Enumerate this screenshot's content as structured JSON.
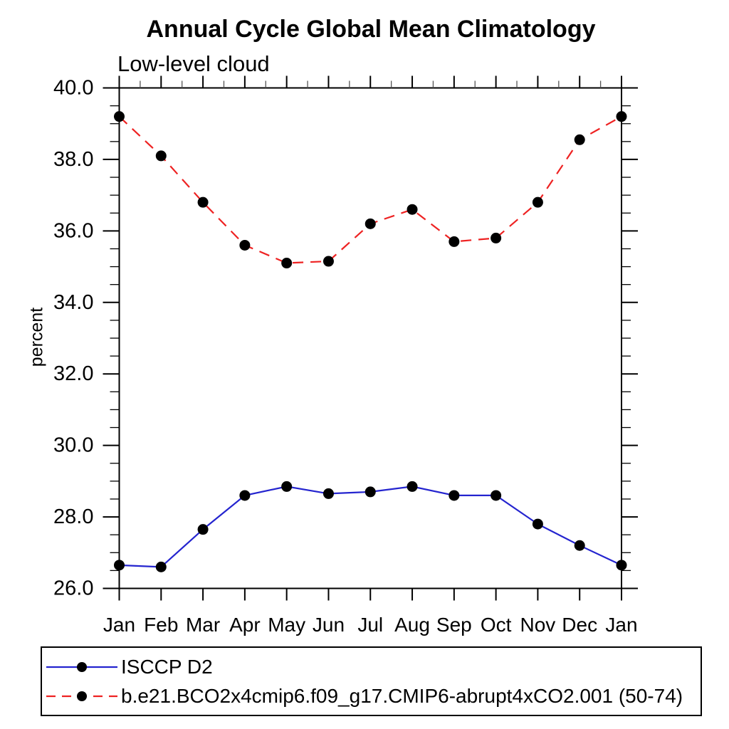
{
  "chart": {
    "title": "Annual Cycle Global Mean Climatology",
    "subtitle": "Low-level cloud",
    "ylabel": "percent"
  },
  "chart_data": {
    "type": "line",
    "title": "Annual Cycle Global Mean Climatology",
    "subtitle": "Low-level cloud",
    "xlabel": "",
    "ylabel": "percent",
    "ylim": [
      26.0,
      40.0
    ],
    "ytick_interval": 2.0,
    "yminor_interval": 0.5,
    "ytick_labels": [
      "26.0",
      "28.0",
      "30.0",
      "32.0",
      "34.0",
      "36.0",
      "38.0",
      "40.0"
    ],
    "categories": [
      "Jan",
      "Feb",
      "Mar",
      "Apr",
      "May",
      "Jun",
      "Jul",
      "Aug",
      "Sep",
      "Oct",
      "Nov",
      "Dec",
      "Jan"
    ],
    "grid": false,
    "legend_position": "bottom-left-box",
    "marker": {
      "shape": "filled-circle",
      "color": "#000000"
    },
    "axis_color": "#000000",
    "series": [
      {
        "name": "ISCCP D2",
        "color": "#2424cf",
        "line_style": "solid",
        "values": [
          26.65,
          26.6,
          27.65,
          28.6,
          28.85,
          28.65,
          28.7,
          28.85,
          28.6,
          28.6,
          27.8,
          27.2,
          26.65
        ]
      },
      {
        "name": "b.e21.BCO2x4cmip6.f09_g17.CMIP6-abrupt4xCO2.001 (50-74)",
        "color": "#ee2222",
        "line_style": "dashed",
        "values": [
          39.2,
          38.1,
          36.8,
          35.6,
          35.1,
          35.15,
          36.2,
          36.6,
          35.7,
          35.8,
          36.8,
          38.55,
          39.2
        ]
      }
    ]
  }
}
